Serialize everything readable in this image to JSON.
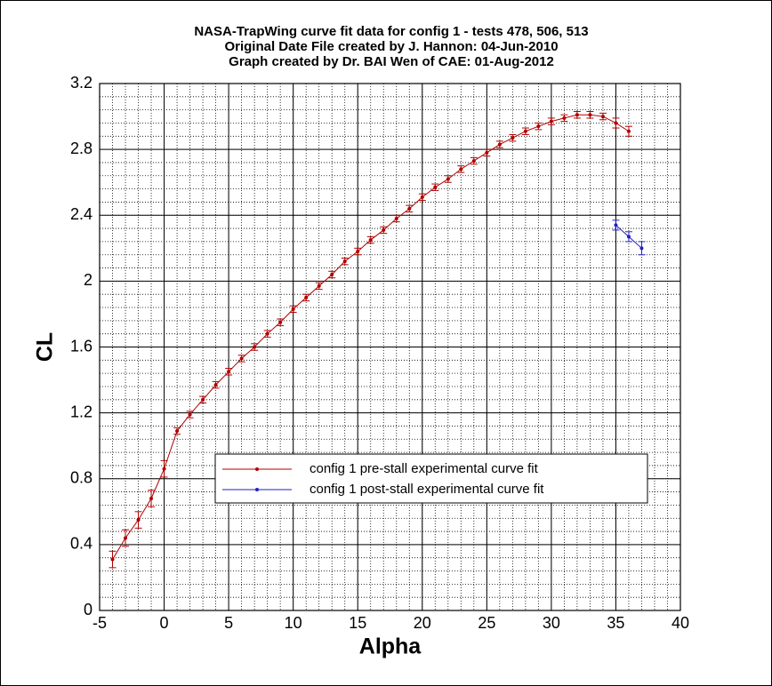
{
  "chart_data": {
    "type": "line",
    "title_lines": [
      "NASA-TrapWing curve fit data for config 1 - tests 478, 506, 513",
      "Original Date File created by J. Hannon: 04-Jun-2010",
      "Graph created by Dr. BAI Wen of CAE: 01-Aug-2012"
    ],
    "x_label": "Alpha",
    "y_label": "CL",
    "xlim": [
      -5,
      40
    ],
    "xticks": [
      -5,
      0,
      5,
      10,
      15,
      20,
      25,
      30,
      35,
      40
    ],
    "ylim": [
      0,
      3.2
    ],
    "yticks": [
      0,
      0.4,
      0.8,
      1.2,
      1.6,
      2,
      2.4,
      2.8,
      3.2
    ],
    "grid": true,
    "minor_grid": true,
    "legend": "lower-right",
    "series": [
      {
        "name": "config 1 pre-stall experimental curve fit",
        "color": "#b00000",
        "x": [
          -4,
          -3,
          -2,
          -1,
          0,
          1,
          2,
          3,
          4,
          5,
          6,
          7,
          8,
          9,
          10,
          11,
          12,
          13,
          14,
          15,
          16,
          17,
          18,
          19,
          20,
          21,
          22,
          23,
          24,
          25,
          26,
          27,
          28,
          29,
          30,
          31,
          32,
          33,
          34,
          35,
          36
        ],
        "values": [
          0.31,
          0.44,
          0.55,
          0.68,
          0.86,
          1.09,
          1.19,
          1.28,
          1.37,
          1.45,
          1.53,
          1.6,
          1.68,
          1.75,
          1.83,
          1.9,
          1.97,
          2.04,
          2.12,
          2.18,
          2.25,
          2.31,
          2.38,
          2.44,
          2.51,
          2.57,
          2.62,
          2.68,
          2.73,
          2.78,
          2.83,
          2.87,
          2.91,
          2.94,
          2.97,
          2.99,
          3.01,
          3.01,
          3.0,
          2.96,
          2.91
        ],
        "errors": [
          0.05,
          0.05,
          0.05,
          0.05,
          0.05,
          0.02,
          0.02,
          0.02,
          0.02,
          0.02,
          0.02,
          0.02,
          0.02,
          0.02,
          0.02,
          0.02,
          0.02,
          0.02,
          0.02,
          0.02,
          0.02,
          0.02,
          0.02,
          0.02,
          0.02,
          0.02,
          0.02,
          0.02,
          0.02,
          0.02,
          0.02,
          0.02,
          0.02,
          0.02,
          0.02,
          0.02,
          0.02,
          0.02,
          0.02,
          0.03,
          0.03
        ]
      },
      {
        "name": "config 1 post-stall experimental curve fit",
        "color": "#2020c0",
        "x": [
          35,
          36,
          37
        ],
        "values": [
          2.34,
          2.27,
          2.2
        ],
        "errors": [
          0.03,
          0.03,
          0.04
        ]
      }
    ]
  }
}
